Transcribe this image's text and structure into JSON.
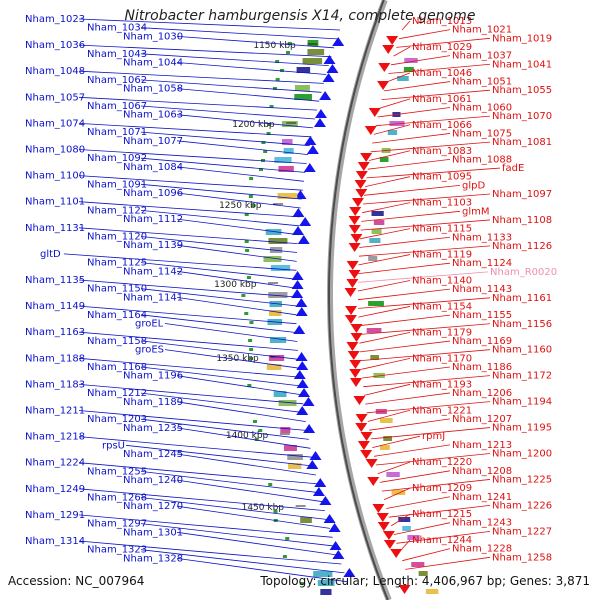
{
  "title": "Nitrobacter hamburgensis X14, complete genome",
  "footer": {
    "accession": "Accession: NC_007964",
    "summary": "Topology: circular; Length: 4,406,967 bp; Genes: 3,871"
  },
  "colors": {
    "left_labels": "#0b12c9",
    "right_labels": "#e01010",
    "rna_label": "#f08fb0",
    "backbone": "#888888"
  },
  "kbp_marks": [
    "1150 kbp",
    "1200 kbp",
    "1250 kbp",
    "1300 kbp",
    "1350 kbp",
    "1400 kbp",
    "1450 kbp"
  ],
  "left_genes": [
    "Nham_1023",
    "Nham_1034",
    "Nham_1030",
    "Nham_1036",
    "Nham_1043",
    "Nham_1044",
    "Nham_1048",
    "Nham_1062",
    "Nham_1058",
    "Nham_1057",
    "Nham_1067",
    "Nham_1063",
    "Nham_1074",
    "Nham_1071",
    "Nham_1077",
    "Nham_1080",
    "Nham_1092",
    "Nham_1084",
    "Nham_1100",
    "Nham_1091",
    "Nham_1096",
    "Nham_1101",
    "Nham_1122",
    "Nham_1112",
    "Nham_1131",
    "Nham_1120",
    "Nham_1139",
    "gltD",
    "Nham_1125",
    "Nham_1142",
    "Nham_1135",
    "Nham_1150",
    "Nham_1141",
    "Nham_1149",
    "Nham_1164",
    "groEL",
    "Nham_1163",
    "Nham_1158",
    "groES",
    "Nham_1188",
    "Nham_1168",
    "Nham_1196",
    "Nham_1183",
    "Nham_1212",
    "Nham_1189",
    "Nham_1211",
    "Nham_1203",
    "Nham_1235",
    "Nham_1218",
    "rpsU",
    "Nham_1245",
    "Nham_1224",
    "Nham_1255",
    "Nham_1240",
    "Nham_1249",
    "Nham_1268",
    "Nham_1270",
    "Nham_1291",
    "Nham_1297",
    "Nham_1301",
    "Nham_1314",
    "Nham_1323",
    "Nham_1328"
  ],
  "right_genes": [
    "Nham_1013",
    "Nham_1021",
    "Nham_1019",
    "Nham_1029",
    "Nham_1037",
    "Nham_1041",
    "Nham_1046",
    "Nham_1051",
    "Nham_1055",
    "Nham_1061",
    "Nham_1060",
    "Nham_1070",
    "Nham_1066",
    "Nham_1075",
    "Nham_1081",
    "Nham_1083",
    "Nham_1088",
    "fadE",
    "Nham_1095",
    "glpD",
    "Nham_1097",
    "Nham_1103",
    "glmM",
    "Nham_1108",
    "Nham_1115",
    "Nham_1133",
    "Nham_1126",
    "Nham_1119",
    "Nham_1124",
    "Nham_R0020",
    "Nham_1140",
    "Nham_1143",
    "Nham_1161",
    "Nham_1154",
    "Nham_1155",
    "Nham_1156",
    "Nham_1179",
    "Nham_1169",
    "Nham_1160",
    "Nham_1170",
    "Nham_1186",
    "Nham_1172",
    "Nham_1193",
    "Nham_1206",
    "Nham_1194",
    "Nham_1221",
    "Nham_1207",
    "Nham_1195",
    "rpmJ",
    "Nham_1213",
    "Nham_1200",
    "Nham_1220",
    "Nham_1208",
    "Nham_1225",
    "Nham_1209",
    "Nham_1241",
    "Nham_1226",
    "Nham_1215",
    "Nham_1243",
    "Nham_1227",
    "Nham_1244",
    "Nham_1228",
    "Nham_1258"
  ]
}
